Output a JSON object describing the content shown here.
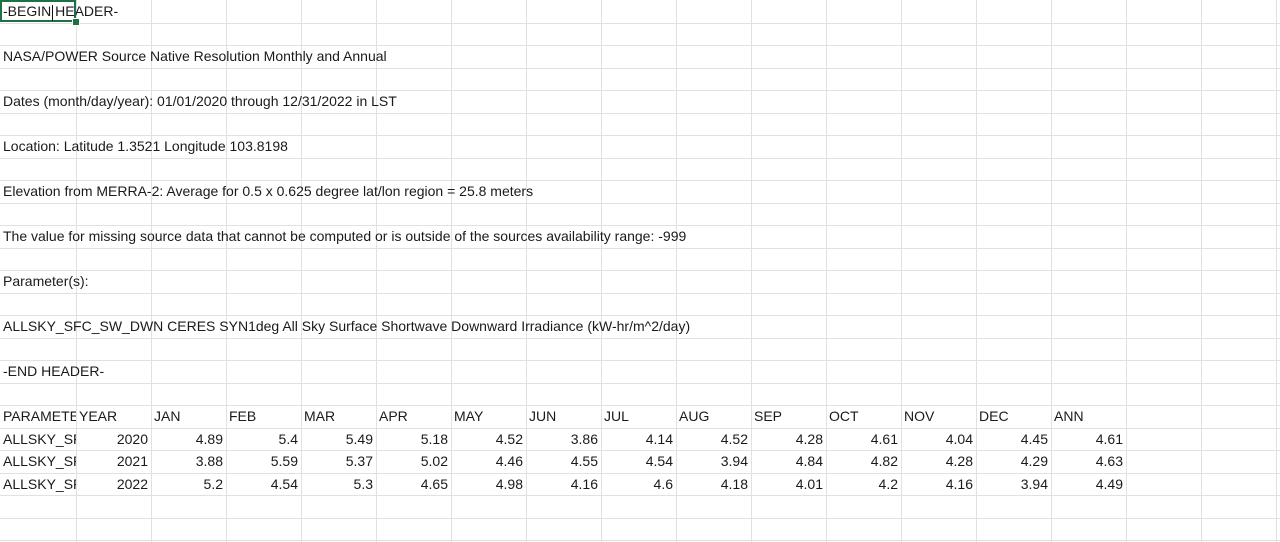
{
  "header_rows": [
    {
      "row": 0,
      "text": "-BEGIN HEADER-"
    },
    {
      "row": 2,
      "text": "NASA/POWER Source Native Resolution Monthly and Annual"
    },
    {
      "row": 4,
      "text": "Dates (month/day/year): 01/01/2020 through 12/31/2022 in LST"
    },
    {
      "row": 6,
      "text": "Location: Latitude  1.3521   Longitude 103.8198"
    },
    {
      "row": 8,
      "text": "Elevation from MERRA-2: Average for 0.5 x 0.625 degree lat/lon region = 25.8 meters"
    },
    {
      "row": 10,
      "text": "The value for missing source data that cannot be computed or is outside of the sources availability range: -999"
    },
    {
      "row": 12,
      "text": "Parameter(s):"
    },
    {
      "row": 14,
      "text": "ALLSKY_SFC_SW_DWN     CERES SYN1deg All Sky Surface Shortwave Downward Irradiance (kW-hr/m^2/day)"
    },
    {
      "row": 16,
      "text": "-END HEADER-"
    }
  ],
  "table": {
    "columns": [
      "PARAMETER",
      "YEAR",
      "JAN",
      "FEB",
      "MAR",
      "APR",
      "MAY",
      "JUN",
      "JUL",
      "AUG",
      "SEP",
      "OCT",
      "NOV",
      "DEC",
      "ANN"
    ],
    "rows": [
      [
        "ALLSKY_SFC_SW_DWN",
        "2020",
        "4.89",
        "5.4",
        "5.49",
        "5.18",
        "4.52",
        "3.86",
        "4.14",
        "4.52",
        "4.28",
        "4.61",
        "4.04",
        "4.45",
        "4.61"
      ],
      [
        "ALLSKY_SFC_SW_DWN",
        "2021",
        "3.88",
        "5.59",
        "5.37",
        "5.02",
        "4.46",
        "4.55",
        "4.54",
        "3.94",
        "4.84",
        "4.82",
        "4.28",
        "4.29",
        "4.63"
      ],
      [
        "ALLSKY_SFC_SW_DWN",
        "2022",
        "5.2",
        "4.54",
        "5.3",
        "4.65",
        "4.98",
        "4.16",
        "4.6",
        "4.18",
        "4.01",
        "4.2",
        "4.16",
        "3.94",
        "4.49"
      ]
    ]
  },
  "active_cell": "A1",
  "colors": {
    "gridline": "#e1e1e1",
    "selection": "#1e7145"
  }
}
